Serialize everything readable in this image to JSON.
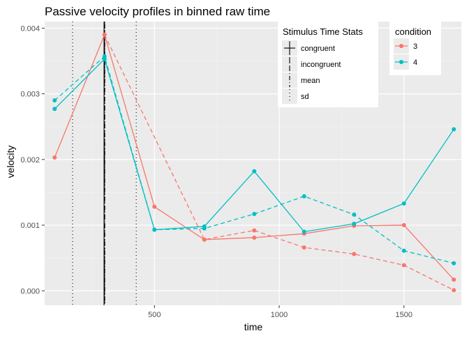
{
  "chart_data": {
    "type": "line",
    "title": "Passive velocity profiles in binned raw time",
    "xlabel": "time",
    "ylabel": "velocity",
    "xlim": [
      60,
      1730
    ],
    "ylim": [
      -0.00022,
      0.0041
    ],
    "x_ticks": [
      500,
      1000,
      1500
    ],
    "x_tick_labels": [
      "500",
      "1000",
      "1500"
    ],
    "y_ticks": [
      0,
      0.001,
      0.002,
      0.003,
      0.004
    ],
    "y_tick_labels": [
      "0.000",
      "0.001",
      "0.002",
      "0.003",
      "0.004"
    ],
    "grid": true,
    "x": [
      100,
      300,
      500,
      700,
      900,
      1100,
      1300,
      1500,
      1700
    ],
    "series": [
      {
        "name": "3",
        "condition": "3",
        "type": "congruent",
        "color": "#F8766D",
        "dash": "solid",
        "values": [
          0.00203,
          0.0039,
          0.00128,
          0.00078,
          0.00081,
          0.00087,
          0.00099,
          0.001,
          0.00017
        ]
      },
      {
        "name": "3",
        "condition": "3",
        "type": "incongruent",
        "color": "#F8766D",
        "dash": "dashed",
        "values": [
          null,
          0.0039,
          null,
          0.00078,
          0.00092,
          0.00066,
          0.00056,
          0.00039,
          1e-05
        ]
      },
      {
        "name": "4",
        "condition": "4",
        "type": "congruent",
        "color": "#00BFC4",
        "dash": "solid",
        "values": [
          0.00277,
          0.00353,
          0.00093,
          0.00098,
          0.00182,
          0.0009,
          0.00102,
          0.00133,
          0.00246
        ]
      },
      {
        "name": "4",
        "condition": "4",
        "type": "incongruent",
        "color": "#00BFC4",
        "dash": "dashed",
        "values": [
          0.0029,
          0.00357,
          0.00093,
          0.00095,
          0.00117,
          0.00144,
          0.00116,
          0.00061,
          0.00042
        ]
      }
    ],
    "vlines": [
      {
        "stat": "sd",
        "x": 172,
        "dash": "dotted"
      },
      {
        "stat": "congruent",
        "x": 298,
        "dash": "solid"
      },
      {
        "stat": "incongruent",
        "x": 300,
        "dash": "longdash"
      },
      {
        "stat": "mean",
        "x": 301,
        "dash": "dotdash"
      },
      {
        "stat": "sd",
        "x": 427,
        "dash": "dotted"
      }
    ],
    "legend_stats": {
      "title": "Stimulus Time Stats",
      "placement": "top-right",
      "items": [
        {
          "label": "congruent",
          "dash": "solid"
        },
        {
          "label": "incongruent",
          "dash": "longdash"
        },
        {
          "label": "mean",
          "dash": "dotdash"
        },
        {
          "label": "sd",
          "dash": "dotted"
        }
      ]
    },
    "legend_condition": {
      "title": "condition",
      "placement": "top-right",
      "items": [
        {
          "label": "3",
          "color": "#F8766D"
        },
        {
          "label": "4",
          "color": "#00BFC4"
        }
      ]
    },
    "colors": {
      "panel": "#EBEBEB",
      "grid": "#FFFFFF",
      "text": "#000000",
      "tick_text": "#4D4D4D",
      "tick": "#333333"
    }
  }
}
